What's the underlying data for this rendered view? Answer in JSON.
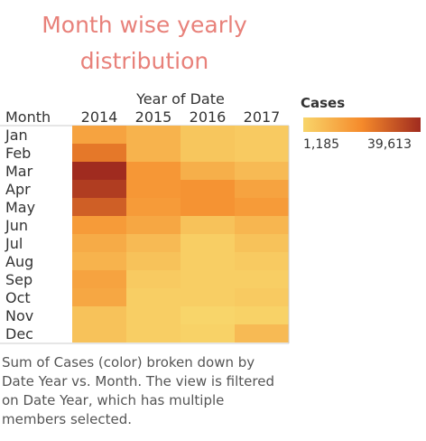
{
  "chart_data": {
    "type": "heatmap",
    "title": "Month wise yearly distribution",
    "column_header": "Year of Date",
    "row_header": "Month",
    "x": [
      "2014",
      "2015",
      "2016",
      "2017"
    ],
    "y": [
      "Jan",
      "Feb",
      "Mar",
      "Apr",
      "May",
      "Jun",
      "Jul",
      "Aug",
      "Sep",
      "Oct",
      "Nov",
      "Dec"
    ],
    "values": [
      [
        14000,
        10000,
        5000,
        4000
      ],
      [
        24000,
        10000,
        5000,
        4000
      ],
      [
        39613,
        17000,
        11000,
        8000
      ],
      [
        36000,
        17000,
        18000,
        14000
      ],
      [
        29000,
        16000,
        18000,
        16000
      ],
      [
        16000,
        13000,
        6000,
        9000
      ],
      [
        12000,
        8000,
        3000,
        6000
      ],
      [
        10000,
        6000,
        3000,
        4000
      ],
      [
        14000,
        4000,
        3000,
        3000
      ],
      [
        13000,
        3000,
        3000,
        4000
      ],
      [
        6000,
        3000,
        1185,
        2000
      ],
      [
        6000,
        3000,
        2000,
        8000
      ]
    ],
    "color_legend": {
      "title": "Cases",
      "min": 1185,
      "max": 39613,
      "min_label": "1,185",
      "max_label": "39,613",
      "colors": [
        "#f8d56a",
        "#f58a2b",
        "#a02b1f"
      ]
    },
    "caption": "Sum of Cases (color) broken down by Date Year vs. Month.  The view is filtered on Date Year, which has multiple members selected."
  }
}
